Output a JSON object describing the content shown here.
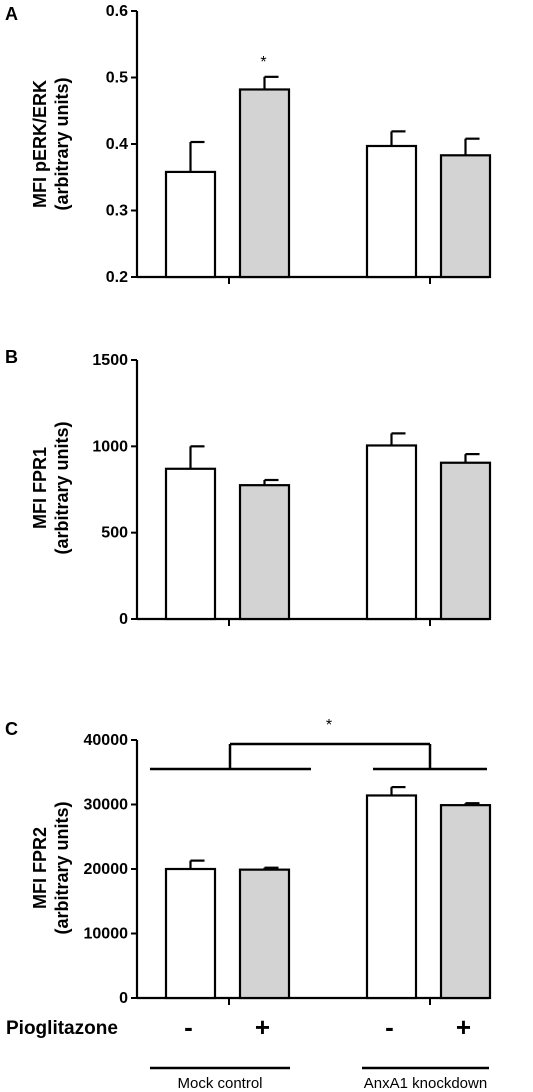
{
  "chart_data": [
    {
      "type": "bar",
      "panel": "A",
      "ylabel_lines": [
        "MFI pERK/ERK",
        "(arbitrary units)"
      ],
      "ylim": [
        0.2,
        0.6
      ],
      "yticks": [
        "0.2",
        "0.3",
        "0.4",
        "0.5",
        "0.6"
      ],
      "yticks_values": [
        0.2,
        0.3,
        0.4,
        0.5,
        0.6
      ],
      "bars": [
        {
          "value": 0.358,
          "error": 0.045,
          "fill": "#ffffff"
        },
        {
          "value": 0.482,
          "error": 0.019,
          "fill": "#d3d3d3"
        },
        {
          "value": 0.397,
          "error": 0.022,
          "fill": "#ffffff"
        },
        {
          "value": 0.383,
          "error": 0.025,
          "fill": "#d3d3d3"
        }
      ],
      "significance": [
        {
          "bar": 1,
          "text": "*"
        }
      ]
    },
    {
      "type": "bar",
      "panel": "B",
      "ylabel_lines": [
        "MFI FPR1",
        "(arbitrary units)"
      ],
      "ylim": [
        0,
        1500
      ],
      "yticks": [
        "0",
        "500",
        "1000",
        "1500"
      ],
      "yticks_values": [
        0,
        500,
        1000,
        1500
      ],
      "bars": [
        {
          "value": 870,
          "error": 130,
          "fill": "#ffffff"
        },
        {
          "value": 775,
          "error": 30,
          "fill": "#d3d3d3"
        },
        {
          "value": 1005,
          "error": 70,
          "fill": "#ffffff"
        },
        {
          "value": 905,
          "error": 50,
          "fill": "#d3d3d3"
        }
      ],
      "significance": []
    },
    {
      "type": "bar",
      "panel": "C",
      "ylabel_lines": [
        "MFI FPR2",
        "(arbitrary units)"
      ],
      "ylim": [
        0,
        40000
      ],
      "yticks": [
        "0",
        "10000",
        "20000",
        "30000",
        "40000"
      ],
      "yticks_values": [
        0,
        10000,
        20000,
        30000,
        40000
      ],
      "bars": [
        {
          "value": 20000,
          "error": 1300,
          "fill": "#ffffff"
        },
        {
          "value": 19900,
          "error": 300,
          "fill": "#d3d3d3"
        },
        {
          "value": 31400,
          "error": 1300,
          "fill": "#ffffff"
        },
        {
          "value": 29900,
          "error": 300,
          "fill": "#d3d3d3"
        }
      ],
      "group_bracket": {
        "text": "*"
      }
    }
  ],
  "treatment": {
    "label": "Pioglitazone",
    "signs": [
      "-",
      "+",
      "-",
      "+"
    ]
  },
  "groups": [
    "Mock control",
    "AnxA1 knockdown"
  ]
}
